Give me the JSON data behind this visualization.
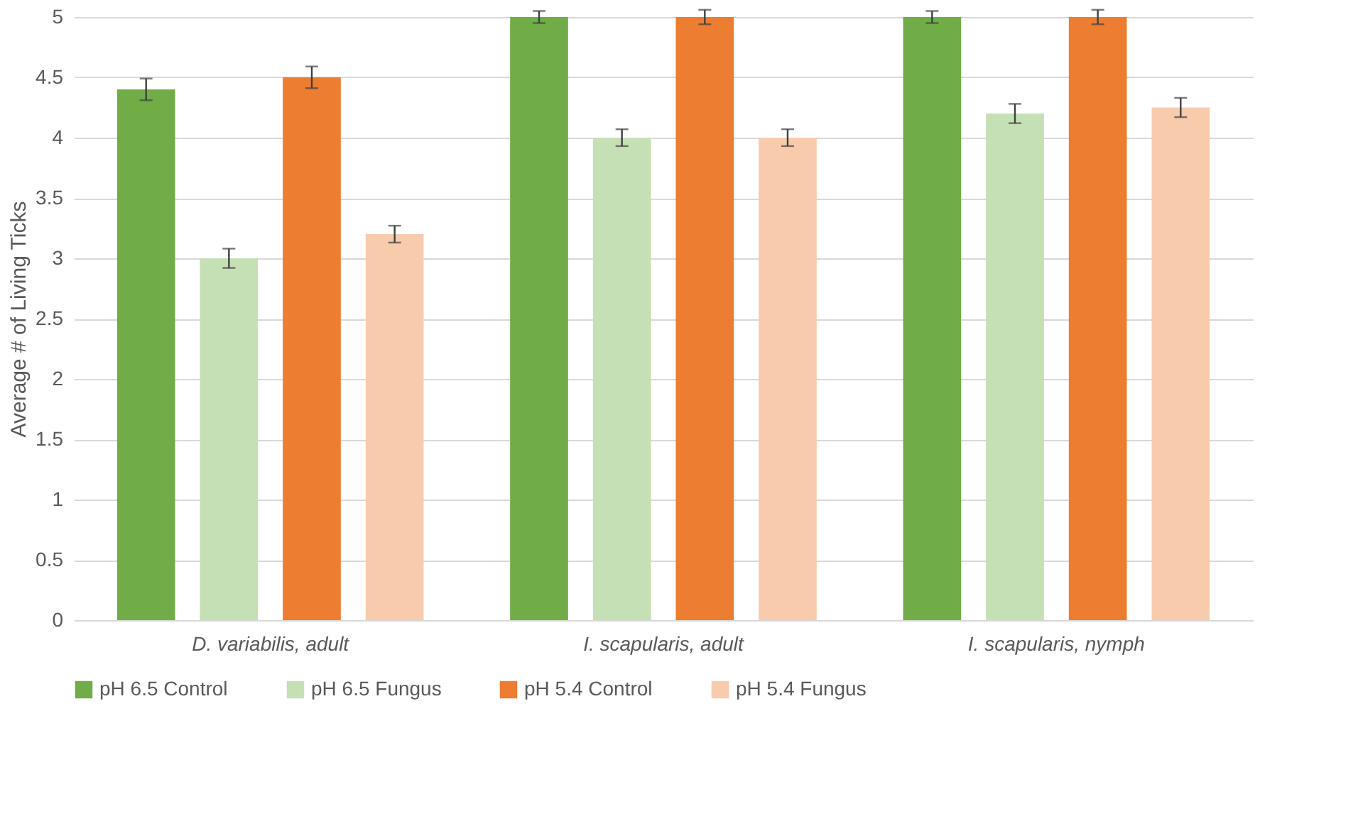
{
  "chart_data": {
    "type": "bar",
    "ylabel": "Average # of Living Ticks",
    "categories": [
      "D. variabilis, adult",
      "I. scapularis, adult",
      "I. scapularis, nymph"
    ],
    "series": [
      {
        "name": "pH 6.5 Control",
        "color": "#70ad47",
        "values": [
          4.4,
          5,
          5
        ],
        "errors": [
          0.09,
          0.05,
          0.05
        ]
      },
      {
        "name": "pH 6.5 Fungus",
        "color": "#c5e0b4",
        "values": [
          3.0,
          4.0,
          4.2
        ],
        "errors": [
          0.08,
          0.07,
          0.08
        ]
      },
      {
        "name": "pH 5.4 Control",
        "color": "#ed7d31",
        "values": [
          4.5,
          5,
          5
        ],
        "errors": [
          0.09,
          0.06,
          0.06
        ]
      },
      {
        "name": "pH 5.4 Fungus",
        "color": "#f8cbad",
        "values": [
          3.2,
          4.0,
          4.25
        ],
        "errors": [
          0.07,
          0.07,
          0.08
        ]
      }
    ],
    "ylim": [
      0,
      5
    ],
    "yticks": [
      0,
      0.5,
      1,
      1.5,
      2,
      2.5,
      3,
      3.5,
      4,
      4.5,
      5
    ],
    "grid": "y",
    "legend": "bottom"
  }
}
